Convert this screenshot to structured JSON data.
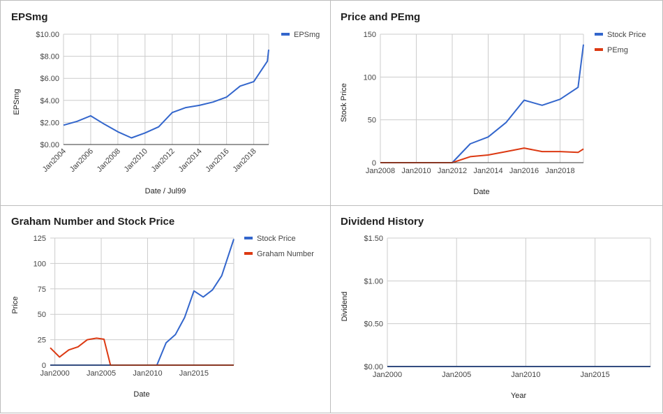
{
  "colors": {
    "blue": "#3366cc",
    "red": "#dc3912"
  },
  "chart_data": [
    {
      "id": "eps",
      "type": "line",
      "title": "EPSmg",
      "xlabel": "Date / Jul99",
      "ylabel": "EPSmg",
      "x_ticks": [
        "Jan2004",
        "Jan2006",
        "Jan2008",
        "Jan2010",
        "Jan2012",
        "Jan2014",
        "Jan2016",
        "Jan2018"
      ],
      "y_ticks": [
        "$0.00",
        "$2.00",
        "$4.00",
        "$6.00",
        "$8.00",
        "$10.00"
      ],
      "xlim": [
        2004,
        2019.1
      ],
      "ylim": [
        0,
        10
      ],
      "series": [
        {
          "name": "EPSmg",
          "color": "#3366cc",
          "x": [
            2004,
            2005,
            2006,
            2007,
            2008,
            2009,
            2010,
            2011,
            2012,
            2013,
            2014,
            2015,
            2016,
            2017,
            2018,
            2019,
            2019.1
          ],
          "y": [
            1.75,
            2.1,
            2.6,
            1.85,
            1.15,
            0.6,
            1.05,
            1.6,
            2.9,
            3.35,
            3.55,
            3.85,
            4.3,
            5.3,
            5.7,
            7.55,
            8.6
          ]
        }
      ]
    },
    {
      "id": "pe",
      "type": "line",
      "title": "Price and PEmg",
      "xlabel": "Date",
      "ylabel": "Stock Price",
      "x_ticks": [
        "Jan2008",
        "Jan2010",
        "Jan2012",
        "Jan2014",
        "Jan2016",
        "Jan2018"
      ],
      "y_ticks": [
        "0",
        "50",
        "100",
        "150"
      ],
      "xlim": [
        2008,
        2019.3
      ],
      "ylim": [
        0,
        150
      ],
      "series": [
        {
          "name": "Stock Price",
          "color": "#3366cc",
          "x": [
            2008,
            2012,
            2013,
            2014,
            2015,
            2016,
            2017,
            2018,
            2019,
            2019.3
          ],
          "y": [
            0,
            0,
            22,
            30,
            47,
            73,
            67,
            74,
            88,
            138
          ]
        },
        {
          "name": "PEmg",
          "color": "#dc3912",
          "x": [
            2008,
            2012,
            2013,
            2014,
            2015,
            2016,
            2017,
            2018,
            2019,
            2019.3
          ],
          "y": [
            0,
            0,
            7,
            9,
            13,
            17,
            13,
            13,
            12,
            16
          ]
        }
      ]
    },
    {
      "id": "graham",
      "type": "line",
      "title": "Graham Number and Stock Price",
      "xlabel": "Date",
      "ylabel": "Price",
      "x_ticks": [
        "Jan2000",
        "Jan2005",
        "Jan2010",
        "Jan2015"
      ],
      "y_ticks": [
        "0",
        "25",
        "50",
        "75",
        "100",
        "125"
      ],
      "xlim": [
        1999.5,
        2019.3
      ],
      "ylim": [
        0,
        125
      ],
      "series": [
        {
          "name": "Stock Price",
          "color": "#3366cc",
          "x": [
            1999.5,
            2011,
            2012,
            2013,
            2014,
            2015,
            2016,
            2017,
            2018,
            2019.3
          ],
          "y": [
            0,
            0,
            22,
            30,
            47,
            73,
            67,
            74,
            88,
            124
          ]
        },
        {
          "name": "Graham Number",
          "color": "#dc3912",
          "x": [
            1999.5,
            2000.5,
            2001.5,
            2002.5,
            2003.5,
            2004.5,
            2005.3,
            2006,
            2019.3
          ],
          "y": [
            17,
            8,
            15,
            18,
            25,
            26.5,
            25.5,
            0,
            0
          ]
        }
      ]
    },
    {
      "id": "dividend",
      "type": "line",
      "title": "Dividend History",
      "xlabel": "Year",
      "ylabel": "Dividend",
      "x_ticks": [
        "Jan2000",
        "Jan2005",
        "Jan2010",
        "Jan2015"
      ],
      "y_ticks": [
        "$0.00",
        "$0.50",
        "$1.00",
        "$1.50"
      ],
      "xlim": [
        2000,
        2019
      ],
      "ylim": [
        0,
        1.5
      ],
      "series": [
        {
          "name": "",
          "color": "#3366cc",
          "x": [
            2000,
            2019
          ],
          "y": [
            0,
            0
          ]
        }
      ]
    }
  ]
}
